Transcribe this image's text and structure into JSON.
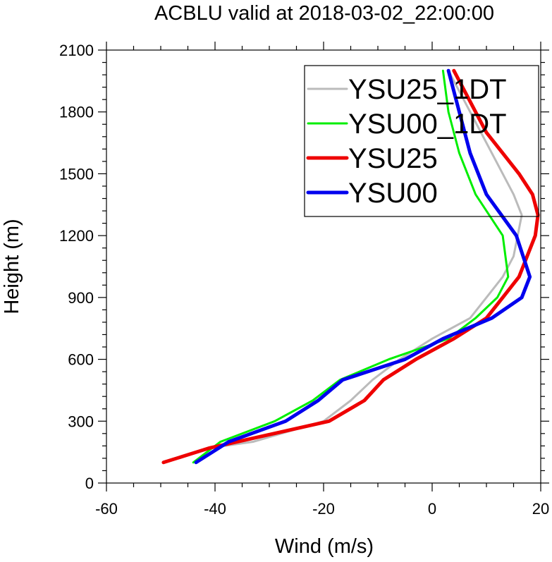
{
  "chart_data": {
    "type": "line",
    "title": "ACBLU valid at 2018-03-02_22:00:00",
    "xlabel": "Wind (m/s)",
    "ylabel": "Height (m)",
    "xlim": [
      -60,
      20
    ],
    "ylim": [
      0,
      2100
    ],
    "xticks": [
      -60,
      -40,
      -20,
      0,
      20
    ],
    "yticks": [
      0,
      300,
      600,
      900,
      1200,
      1500,
      1800,
      2100
    ],
    "xticks_minor_step": 5,
    "yticks_minor_step": 60,
    "grid": false,
    "legend_position": "top-right",
    "series": [
      {
        "name": "YSU25_1DT",
        "color": "#bbbbbb",
        "width": 3,
        "points": [
          [
            -49.5,
            100
          ],
          [
            -41,
            170
          ],
          [
            -33,
            200
          ],
          [
            -20,
            300
          ],
          [
            -15,
            400
          ],
          [
            -11,
            500
          ],
          [
            -6,
            600
          ],
          [
            0,
            700
          ],
          [
            7,
            800
          ],
          [
            10,
            900
          ],
          [
            13,
            1000
          ],
          [
            15,
            1100
          ],
          [
            16.5,
            1300
          ],
          [
            15,
            1400
          ],
          [
            12,
            1550
          ],
          [
            9,
            1700
          ],
          [
            6,
            1850
          ],
          [
            3,
            2000
          ]
        ]
      },
      {
        "name": "YSU00_1DT",
        "color": "#00ee00",
        "width": 3,
        "points": [
          [
            -44,
            100
          ],
          [
            -39,
            200
          ],
          [
            -29,
            300
          ],
          [
            -22,
            400
          ],
          [
            -17,
            500
          ],
          [
            -8,
            600
          ],
          [
            3,
            700
          ],
          [
            8,
            800
          ],
          [
            12,
            900
          ],
          [
            14,
            1000
          ],
          [
            13,
            1200
          ],
          [
            8,
            1400
          ],
          [
            5,
            1600
          ],
          [
            3,
            1800
          ],
          [
            2,
            2000
          ]
        ]
      },
      {
        "name": "YSU25",
        "color": "#ee0000",
        "width": 5,
        "points": [
          [
            -49.5,
            100
          ],
          [
            -41,
            170
          ],
          [
            -19,
            300
          ],
          [
            -12.5,
            400
          ],
          [
            -9,
            500
          ],
          [
            -3,
            600
          ],
          [
            4,
            700
          ],
          [
            10,
            800
          ],
          [
            13,
            900
          ],
          [
            16,
            1000
          ],
          [
            19,
            1200
          ],
          [
            19.5,
            1300
          ],
          [
            18.5,
            1400
          ],
          [
            16,
            1500
          ],
          [
            13,
            1600
          ],
          [
            10,
            1700
          ],
          [
            7,
            1850
          ],
          [
            4,
            2000
          ]
        ]
      },
      {
        "name": "YSU00",
        "color": "#0000ee",
        "width": 5,
        "points": [
          [
            -43.5,
            100
          ],
          [
            -37.5,
            200
          ],
          [
            -27,
            300
          ],
          [
            -21,
            400
          ],
          [
            -16.5,
            500
          ],
          [
            -5,
            600
          ],
          [
            2,
            700
          ],
          [
            11,
            800
          ],
          [
            16.5,
            900
          ],
          [
            18,
            1000
          ],
          [
            15.5,
            1200
          ],
          [
            10,
            1400
          ],
          [
            7,
            1600
          ],
          [
            5,
            1800
          ],
          [
            3,
            2000
          ]
        ]
      }
    ]
  }
}
